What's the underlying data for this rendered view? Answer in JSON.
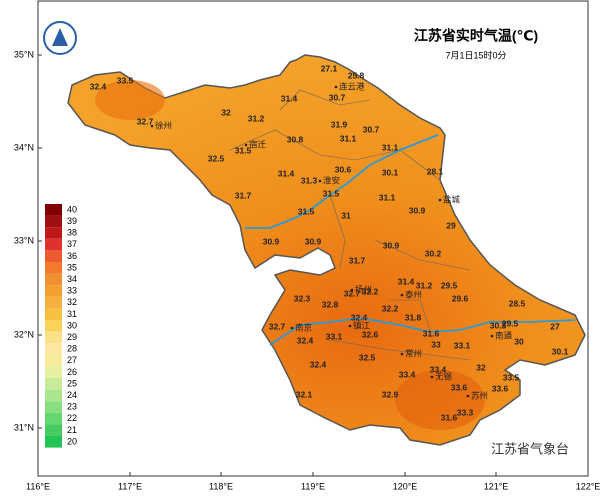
{
  "title": "江苏省实时气温(℃)",
  "subtitle": "7月1日15时0分",
  "source": "江苏省气象台",
  "latitude_labels": [
    "35°N",
    "34°N",
    "33°N",
    "32°N",
    "31°N"
  ],
  "longitude_labels": [
    "116°E",
    "117°E",
    "118°E",
    "119°E",
    "120°E",
    "121°E",
    "122°E"
  ],
  "legend": {
    "levels": [
      40,
      39,
      38,
      37,
      36,
      35,
      34,
      33,
      32,
      31,
      30,
      29,
      28,
      27,
      26,
      25,
      24,
      23,
      22,
      21,
      20
    ],
    "colors": [
      "#800000",
      "#a01010",
      "#c01818",
      "#e03030",
      "#ee5a30",
      "#f37a2a",
      "#f19030",
      "#f3a030",
      "#f6b040",
      "#f8c040",
      "#fbd25a",
      "#fbe08a",
      "#fbe7a0",
      "#f6eb9a",
      "#e6f0a0",
      "#c8ec98",
      "#a8e690",
      "#88de80",
      "#66d670",
      "#44cc60",
      "#22c455"
    ]
  },
  "cities": [
    "连云港",
    "徐州",
    "宿迁",
    "淮安",
    "盐城",
    "扬州",
    "泰州",
    "南京",
    "镇江",
    "常州",
    "无锡",
    "苏州",
    "南通"
  ],
  "temperatures": [
    27.1,
    25.8,
    30.7,
    32.4,
    33.5,
    31.4,
    32.7,
    32.0,
    31.2,
    31.9,
    30.7,
    31.1,
    30.8,
    31.5,
    31.1,
    32.5,
    30.6,
    30.1,
    28.1,
    31.4,
    31.3,
    31.7,
    31.5,
    31.1,
    30.9,
    29.0,
    31.5,
    31.0,
    30.9,
    30.9,
    30.9,
    30.2,
    31.7,
    31.4,
    29.5,
    31.2,
    32.7,
    32.2,
    32.3,
    29.6,
    28.5,
    32.8,
    32.2,
    31.8,
    32.4,
    32.7,
    32.6,
    30.3,
    29.5,
    27.0,
    33.1,
    32.4,
    31.6,
    33.0,
    33.1,
    30.0,
    30.1,
    32.5,
    32.4,
    33.4,
    33.4,
    32.0,
    33.5,
    33.6,
    33.6,
    32.9,
    32.1,
    33.3,
    31.6
  ]
}
